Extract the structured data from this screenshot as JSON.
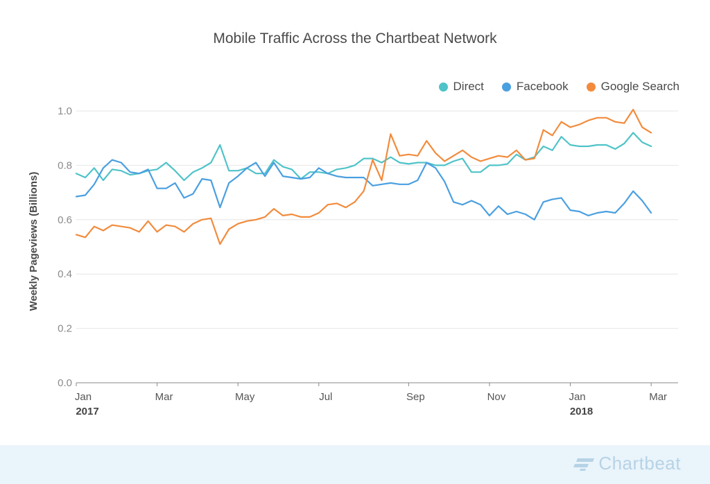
{
  "chart_data": {
    "type": "line",
    "title": "Mobile Traffic Across the Chartbeat Network",
    "ylabel": "Weekly Pageviews (Billions)",
    "xlabel": "",
    "ylim": [
      0,
      1.0
    ],
    "yticks": [
      "0.0",
      "0.2",
      "0.4",
      "0.6",
      "0.8",
      "1.0"
    ],
    "legend_position": "top-right",
    "x_labels": [
      {
        "month": "Jan",
        "year": "2017",
        "week": 0
      },
      {
        "month": "Mar",
        "year": "",
        "week": 9
      },
      {
        "month": "May",
        "year": "",
        "week": 18
      },
      {
        "month": "Jul",
        "year": "",
        "week": 27
      },
      {
        "month": "Sep",
        "year": "",
        "week": 37
      },
      {
        "month": "Nov",
        "year": "",
        "week": 46
      },
      {
        "month": "Jan",
        "year": "2018",
        "week": 55
      },
      {
        "month": "Mar",
        "year": "",
        "week": 64
      }
    ],
    "num_weeks": 68,
    "series": [
      {
        "name": "Direct",
        "color": "#4fc3c8",
        "values": [
          0.77,
          0.755,
          0.79,
          0.745,
          0.785,
          0.78,
          0.765,
          0.77,
          0.78,
          0.785,
          0.81,
          0.78,
          0.745,
          0.775,
          0.79,
          0.81,
          0.875,
          0.78,
          0.78,
          0.79,
          0.77,
          0.77,
          0.82,
          0.795,
          0.785,
          0.75,
          0.775,
          0.775,
          0.77,
          0.785,
          0.79,
          0.8,
          0.825,
          0.825,
          0.81,
          0.83,
          0.81,
          0.805,
          0.81,
          0.81,
          0.8,
          0.8,
          0.815,
          0.825,
          0.775,
          0.775,
          0.8,
          0.8,
          0.805,
          0.84,
          0.82,
          0.83,
          0.87,
          0.855,
          0.905,
          0.875,
          0.87,
          0.87,
          0.875,
          0.875,
          0.86,
          0.88,
          0.92,
          0.885,
          0.87
        ]
      },
      {
        "name": "Facebook",
        "color": "#4a9fe0",
        "values": [
          0.685,
          0.69,
          0.73,
          0.79,
          0.82,
          0.81,
          0.775,
          0.77,
          0.785,
          0.715,
          0.715,
          0.735,
          0.68,
          0.695,
          0.75,
          0.745,
          0.645,
          0.735,
          0.76,
          0.79,
          0.81,
          0.76,
          0.81,
          0.76,
          0.755,
          0.75,
          0.755,
          0.79,
          0.77,
          0.76,
          0.755,
          0.755,
          0.755,
          0.725,
          0.73,
          0.735,
          0.73,
          0.73,
          0.745,
          0.81,
          0.79,
          0.74,
          0.665,
          0.655,
          0.67,
          0.655,
          0.615,
          0.65,
          0.62,
          0.63,
          0.62,
          0.6,
          0.665,
          0.675,
          0.68,
          0.635,
          0.63,
          0.615,
          0.625,
          0.63,
          0.625,
          0.66,
          0.705,
          0.67,
          0.625
        ]
      },
      {
        "name": "Google Search",
        "color": "#f28b3c",
        "values": [
          0.545,
          0.535,
          0.575,
          0.56,
          0.58,
          0.575,
          0.57,
          0.555,
          0.595,
          0.555,
          0.58,
          0.575,
          0.555,
          0.585,
          0.6,
          0.605,
          0.51,
          0.565,
          0.585,
          0.595,
          0.6,
          0.61,
          0.64,
          0.615,
          0.62,
          0.61,
          0.61,
          0.625,
          0.655,
          0.66,
          0.645,
          0.665,
          0.705,
          0.82,
          0.745,
          0.915,
          0.835,
          0.84,
          0.835,
          0.89,
          0.845,
          0.815,
          0.835,
          0.855,
          0.83,
          0.815,
          0.825,
          0.835,
          0.83,
          0.855,
          0.82,
          0.825,
          0.93,
          0.91,
          0.96,
          0.94,
          0.95,
          0.965,
          0.975,
          0.975,
          0.96,
          0.955,
          1.005,
          0.94,
          0.92
        ]
      }
    ]
  },
  "footer": {
    "logo_text": "Chartbeat"
  }
}
